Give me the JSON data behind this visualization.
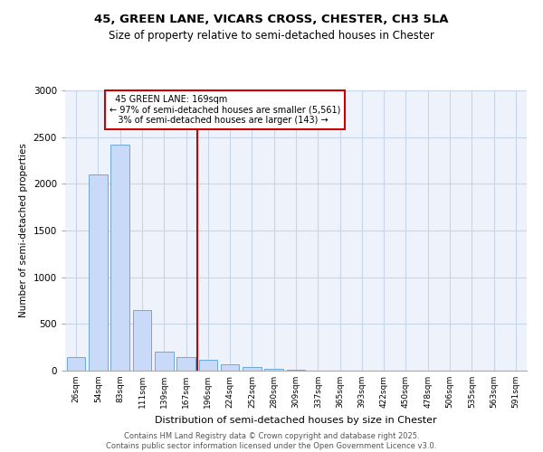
{
  "title_line1": "45, GREEN LANE, VICARS CROSS, CHESTER, CH3 5LA",
  "title_line2": "Size of property relative to semi-detached houses in Chester",
  "xlabel": "Distribution of semi-detached houses by size in Chester",
  "ylabel": "Number of semi-detached properties",
  "property_label": "45 GREEN LANE: 169sqm",
  "pct_smaller": 97,
  "pct_smaller_count": "5,561",
  "pct_larger": 3,
  "pct_larger_count": "143",
  "bar_color": "#c9daf8",
  "bar_edge_color": "#6fa8dc",
  "vline_color": "#cc0000",
  "annotation_box_color": "#cc0000",
  "grid_color": "#c8d4e8",
  "background_color": "#eef2fa",
  "categories": [
    "26sqm",
    "54sqm",
    "83sqm",
    "111sqm",
    "139sqm",
    "167sqm",
    "196sqm",
    "224sqm",
    "252sqm",
    "280sqm",
    "309sqm",
    "337sqm",
    "365sqm",
    "393sqm",
    "422sqm",
    "450sqm",
    "478sqm",
    "506sqm",
    "535sqm",
    "563sqm",
    "591sqm"
  ],
  "values": [
    150,
    2100,
    2420,
    650,
    200,
    145,
    120,
    70,
    40,
    15,
    5,
    2,
    1,
    0,
    0,
    0,
    0,
    0,
    0,
    0,
    0
  ],
  "vline_index": 5,
  "ylim": [
    0,
    3000
  ],
  "yticks": [
    0,
    500,
    1000,
    1500,
    2000,
    2500,
    3000
  ],
  "footer_line1": "Contains HM Land Registry data © Crown copyright and database right 2025.",
  "footer_line2": "Contains public sector information licensed under the Open Government Licence v3.0."
}
